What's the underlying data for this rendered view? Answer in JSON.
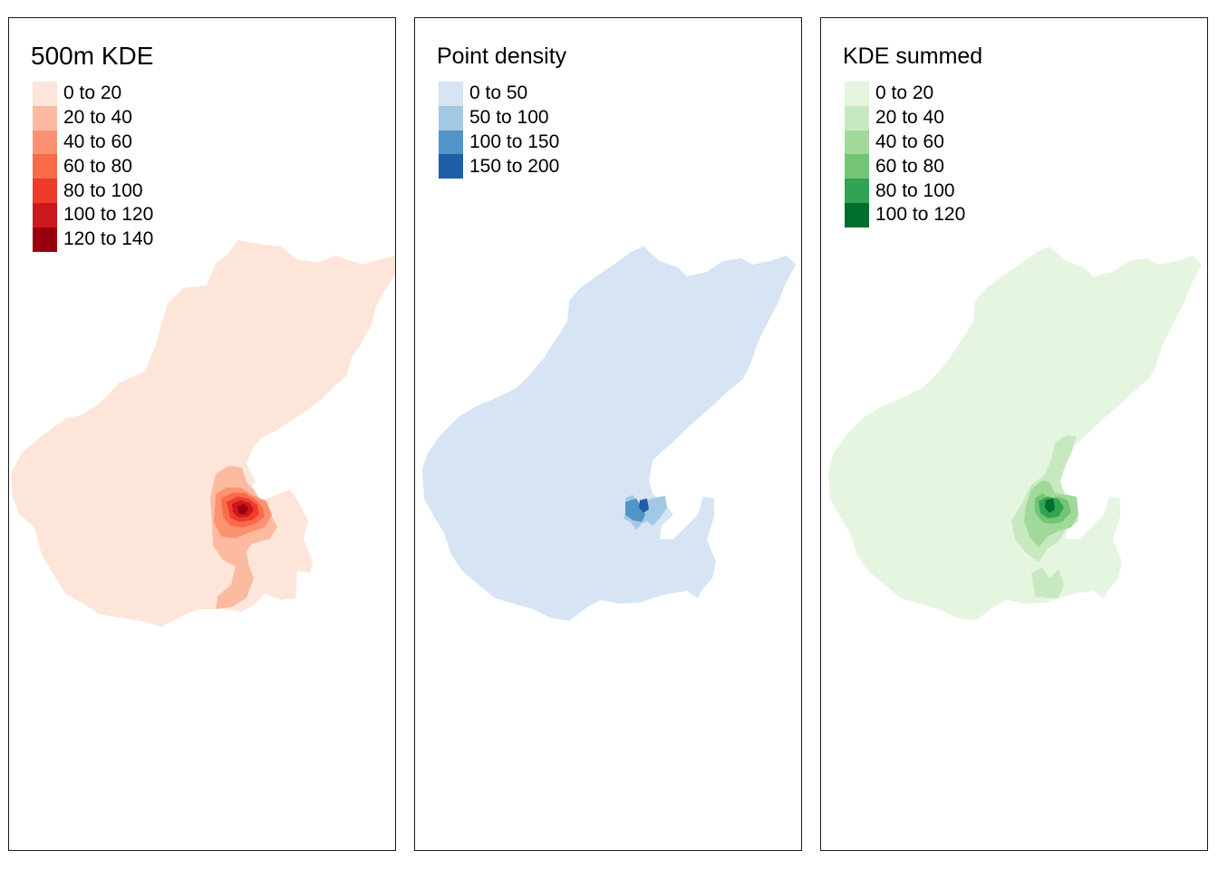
{
  "panels": [
    {
      "title": "500m KDE",
      "legend": [
        {
          "label": "0 to 20",
          "color": "#fee5d9"
        },
        {
          "label": "20 to 40",
          "color": "#fcbba1"
        },
        {
          "label": "40 to 60",
          "color": "#fc9272"
        },
        {
          "label": "60 to 80",
          "color": "#fb6a4a"
        },
        {
          "label": "80 to 100",
          "color": "#ef3b2c"
        },
        {
          "label": "100 to 120",
          "color": "#cb181d"
        },
        {
          "label": "120 to 140",
          "color": "#99000d"
        }
      ]
    },
    {
      "title": "Point density",
      "legend": [
        {
          "label": "0 to 50",
          "color": "#d6e4f4"
        },
        {
          "label": "50 to 100",
          "color": "#a3c8e3"
        },
        {
          "label": "100 to 150",
          "color": "#5094c9"
        },
        {
          "label": "150 to 200",
          "color": "#1f5fa8"
        }
      ]
    },
    {
      "title": "KDE summed",
      "legend": [
        {
          "label": "0 to 20",
          "color": "#e5f5e0"
        },
        {
          "label": "20 to 40",
          "color": "#c7e9c0"
        },
        {
          "label": "40 to 60",
          "color": "#a1d99b"
        },
        {
          "label": "60 to 80",
          "color": "#74c476"
        },
        {
          "label": "80 to 100",
          "color": "#31a354"
        },
        {
          "label": "100 to 120",
          "color": "#006d2c"
        }
      ]
    }
  ]
}
